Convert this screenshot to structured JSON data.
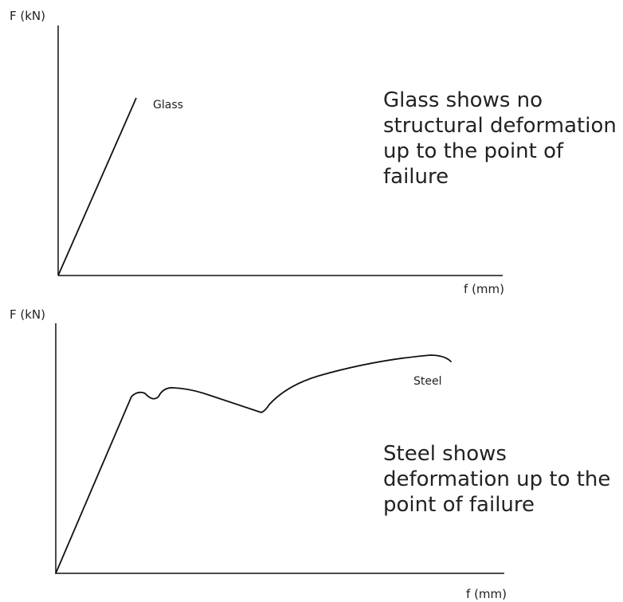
{
  "panels": {
    "glass": {
      "y_axis_label": "F (kN)",
      "x_axis_label": "f (mm)",
      "curve_label": "Glass",
      "note_lines": [
        "Glass shows no",
        "structural deformation",
        "up to the point of",
        "failure"
      ]
    },
    "steel": {
      "y_axis_label": "F (kN)",
      "x_axis_label": "f (mm)",
      "curve_label": "Steel",
      "note_lines": [
        "Steel shows",
        "deformation up to the",
        "point of failure"
      ]
    }
  },
  "colors": {
    "line": "#111111",
    "text": "#222222",
    "background": "#ffffff"
  }
}
